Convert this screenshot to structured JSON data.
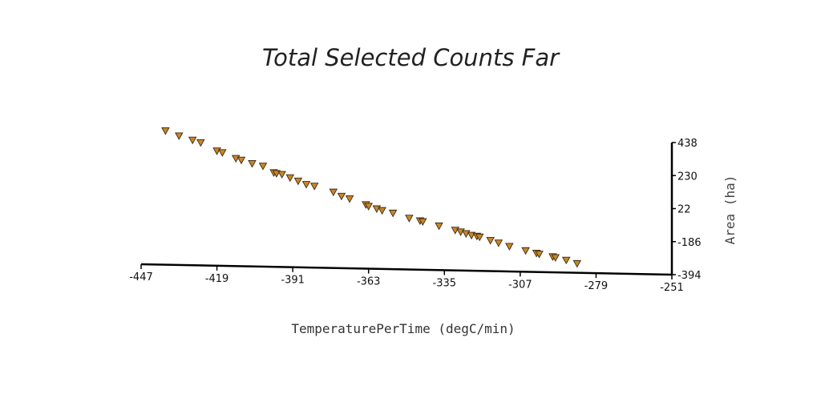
{
  "chart_data": {
    "type": "scatter",
    "title": "Total Selected Counts Far",
    "xlabel": "TemperaturePerTime (degC/min)",
    "ylabel": "Area (ha)",
    "xlim": [
      -447,
      -251
    ],
    "ylim": [
      -394,
      438
    ],
    "xticks": [
      "-447",
      "-419",
      "-391",
      "-363",
      "-335",
      "-307",
      "-279",
      "-251"
    ],
    "yticks": [
      "-394",
      "-186",
      "22",
      "230",
      "438"
    ],
    "marker": "triangle-down",
    "marker_color": "#c8862a",
    "series": [
      {
        "x": [
          -438,
          -433,
          -428,
          -425,
          -419,
          -417,
          -412,
          -410,
          -406,
          -402,
          -398,
          -397,
          -395,
          -392,
          -389,
          -386,
          -383,
          -376,
          -373,
          -370,
          -364,
          -363,
          -360,
          -358,
          -354,
          -348,
          -344,
          -343,
          -337,
          -331,
          -329,
          -327,
          -325,
          -323,
          -322,
          -318,
          -315,
          -311,
          -305,
          -301,
          -300,
          -295,
          -294,
          -290,
          -286
        ],
        "y": [
          450,
          420,
          395,
          380,
          330,
          320,
          285,
          275,
          255,
          240,
          200,
          195,
          190,
          170,
          150,
          130,
          120,
          85,
          60,
          45,
          10,
          0,
          -15,
          -25,
          -40,
          -70,
          -85,
          -90,
          -115,
          -140,
          -150,
          -160,
          -170,
          -175,
          -180,
          -200,
          -215,
          -235,
          -260,
          -275,
          -280,
          -295,
          -300,
          -315,
          -335
        ]
      }
    ]
  }
}
